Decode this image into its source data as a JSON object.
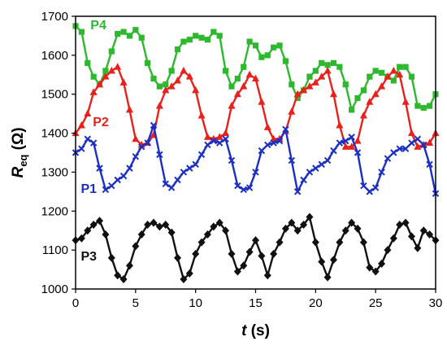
{
  "chart_data": {
    "type": "line",
    "xlabel_var": "t",
    "xlabel_unit": "(s)",
    "ylabel_main": "R",
    "ylabel_sub": "eq",
    "ylabel_unit": "(Ω)",
    "xlim": [
      0,
      30
    ],
    "ylim": [
      1000,
      1700
    ],
    "xticks": [
      0,
      5,
      10,
      15,
      20,
      25,
      30
    ],
    "yticks": [
      1000,
      1100,
      1200,
      1300,
      1400,
      1500,
      1600,
      1700
    ],
    "grid": false,
    "series": [
      {
        "name": "P4",
        "color": "#2eb82e",
        "marker": "square",
        "x": [
          0,
          0.5,
          1,
          1.5,
          2,
          2.5,
          3,
          3.5,
          4,
          4.5,
          5,
          5.5,
          6,
          6.5,
          7,
          7.5,
          8,
          8.5,
          9,
          9.5,
          10,
          10.5,
          11,
          11.5,
          12,
          12.5,
          13,
          13.5,
          14,
          14.5,
          15,
          15.5,
          16,
          16.5,
          17,
          17.5,
          18,
          18.5,
          19,
          19.5,
          20,
          20.5,
          21,
          21.5,
          22,
          22.5,
          23,
          23.5,
          24,
          24.5,
          25,
          25.5,
          26,
          26.5,
          27,
          27.5,
          28,
          28.5,
          29,
          29.5,
          30
        ],
        "values": [
          1675,
          1660,
          1580,
          1545,
          1525,
          1560,
          1610,
          1655,
          1660,
          1650,
          1665,
          1645,
          1580,
          1540,
          1520,
          1525,
          1560,
          1615,
          1635,
          1640,
          1650,
          1645,
          1640,
          1660,
          1650,
          1560,
          1520,
          1540,
          1570,
          1635,
          1625,
          1595,
          1600,
          1620,
          1625,
          1585,
          1525,
          1490,
          1510,
          1545,
          1560,
          1580,
          1575,
          1580,
          1570,
          1525,
          1460,
          1490,
          1510,
          1545,
          1560,
          1555,
          1545,
          1535,
          1570,
          1570,
          1545,
          1470,
          1465,
          1470,
          1500
        ]
      },
      {
        "name": "P2",
        "color": "#e8211d",
        "marker": "triangle",
        "x": [
          0,
          0.5,
          1,
          1.5,
          2,
          2.5,
          3,
          3.5,
          4,
          4.5,
          5,
          5.5,
          6,
          6.5,
          7,
          7.5,
          8,
          8.5,
          9,
          9.5,
          10,
          10.5,
          11,
          11.5,
          12,
          12.5,
          13,
          13.5,
          14,
          14.5,
          15,
          15.5,
          16,
          16.5,
          17,
          17.5,
          18,
          18.5,
          19,
          19.5,
          20,
          20.5,
          21,
          21.5,
          22,
          22.5,
          23,
          23.5,
          24,
          24.5,
          25,
          25.5,
          26,
          26.5,
          27,
          27.5,
          28,
          28.5,
          29,
          29.5,
          30
        ],
        "values": [
          1400,
          1420,
          1450,
          1505,
          1525,
          1545,
          1560,
          1570,
          1530,
          1460,
          1385,
          1370,
          1375,
          1395,
          1470,
          1510,
          1520,
          1535,
          1560,
          1545,
          1510,
          1445,
          1390,
          1385,
          1390,
          1400,
          1470,
          1500,
          1520,
          1550,
          1540,
          1480,
          1415,
          1385,
          1385,
          1405,
          1455,
          1500,
          1510,
          1520,
          1530,
          1545,
          1560,
          1500,
          1420,
          1365,
          1365,
          1380,
          1445,
          1480,
          1500,
          1520,
          1545,
          1560,
          1550,
          1480,
          1400,
          1365,
          1370,
          1375,
          1400
        ]
      },
      {
        "name": "P1",
        "color": "#1b2fc4",
        "marker": "x",
        "x": [
          0,
          0.5,
          1,
          1.5,
          2,
          2.5,
          3,
          3.5,
          4,
          4.5,
          5,
          5.5,
          6,
          6.5,
          7,
          7.5,
          8,
          8.5,
          9,
          9.5,
          10,
          10.5,
          11,
          11.5,
          12,
          12.5,
          13,
          13.5,
          14,
          14.5,
          15,
          15.5,
          16,
          16.5,
          17,
          17.5,
          18,
          18.5,
          19,
          19.5,
          20,
          20.5,
          21,
          21.5,
          22,
          22.5,
          23,
          23.5,
          24,
          24.5,
          25,
          25.5,
          26,
          26.5,
          27,
          27.5,
          28,
          28.5,
          29,
          29.5,
          30
        ],
        "values": [
          1350,
          1360,
          1385,
          1375,
          1310,
          1255,
          1265,
          1280,
          1290,
          1310,
          1340,
          1365,
          1375,
          1420,
          1345,
          1270,
          1260,
          1280,
          1300,
          1310,
          1320,
          1345,
          1370,
          1380,
          1375,
          1385,
          1330,
          1265,
          1255,
          1260,
          1300,
          1355,
          1370,
          1375,
          1380,
          1410,
          1330,
          1250,
          1280,
          1300,
          1310,
          1320,
          1330,
          1355,
          1375,
          1380,
          1390,
          1350,
          1265,
          1250,
          1260,
          1300,
          1335,
          1350,
          1360,
          1360,
          1375,
          1385,
          1370,
          1320,
          1245
        ]
      },
      {
        "name": "P3",
        "color": "#111111",
        "marker": "diamond",
        "x": [
          0,
          0.5,
          1,
          1.5,
          2,
          2.5,
          3,
          3.5,
          4,
          4.5,
          5,
          5.5,
          6,
          6.5,
          7,
          7.5,
          8,
          8.5,
          9,
          9.5,
          10,
          10.5,
          11,
          11.5,
          12,
          12.5,
          13,
          13.5,
          14,
          14.5,
          15,
          15.5,
          16,
          16.5,
          17,
          17.5,
          18,
          18.5,
          19,
          19.5,
          20,
          20.5,
          21,
          21.5,
          22,
          22.5,
          23,
          23.5,
          24,
          24.5,
          25,
          25.5,
          26,
          26.5,
          27,
          27.5,
          28,
          28.5,
          29,
          29.5,
          30
        ],
        "values": [
          1125,
          1130,
          1150,
          1165,
          1175,
          1140,
          1080,
          1035,
          1025,
          1060,
          1110,
          1140,
          1165,
          1170,
          1160,
          1165,
          1145,
          1080,
          1025,
          1040,
          1090,
          1120,
          1140,
          1160,
          1170,
          1150,
          1090,
          1045,
          1060,
          1095,
          1125,
          1085,
          1035,
          1090,
          1120,
          1155,
          1170,
          1150,
          1165,
          1185,
          1120,
          1070,
          1030,
          1075,
          1120,
          1150,
          1170,
          1155,
          1120,
          1055,
          1045,
          1065,
          1100,
          1130,
          1165,
          1170,
          1135,
          1105,
          1150,
          1140,
          1125
        ]
      }
    ],
    "annotations": [
      {
        "text": "P4",
        "color": "#2eb82e",
        "x": 1.9,
        "y": 1667
      },
      {
        "text": "P2",
        "color": "#e8211d",
        "x": 2.1,
        "y": 1418
      },
      {
        "text": "P1",
        "color": "#1b2fc4",
        "x": 1.1,
        "y": 1247
      },
      {
        "text": "P3",
        "color": "#111111",
        "x": 1.1,
        "y": 1073
      }
    ]
  }
}
